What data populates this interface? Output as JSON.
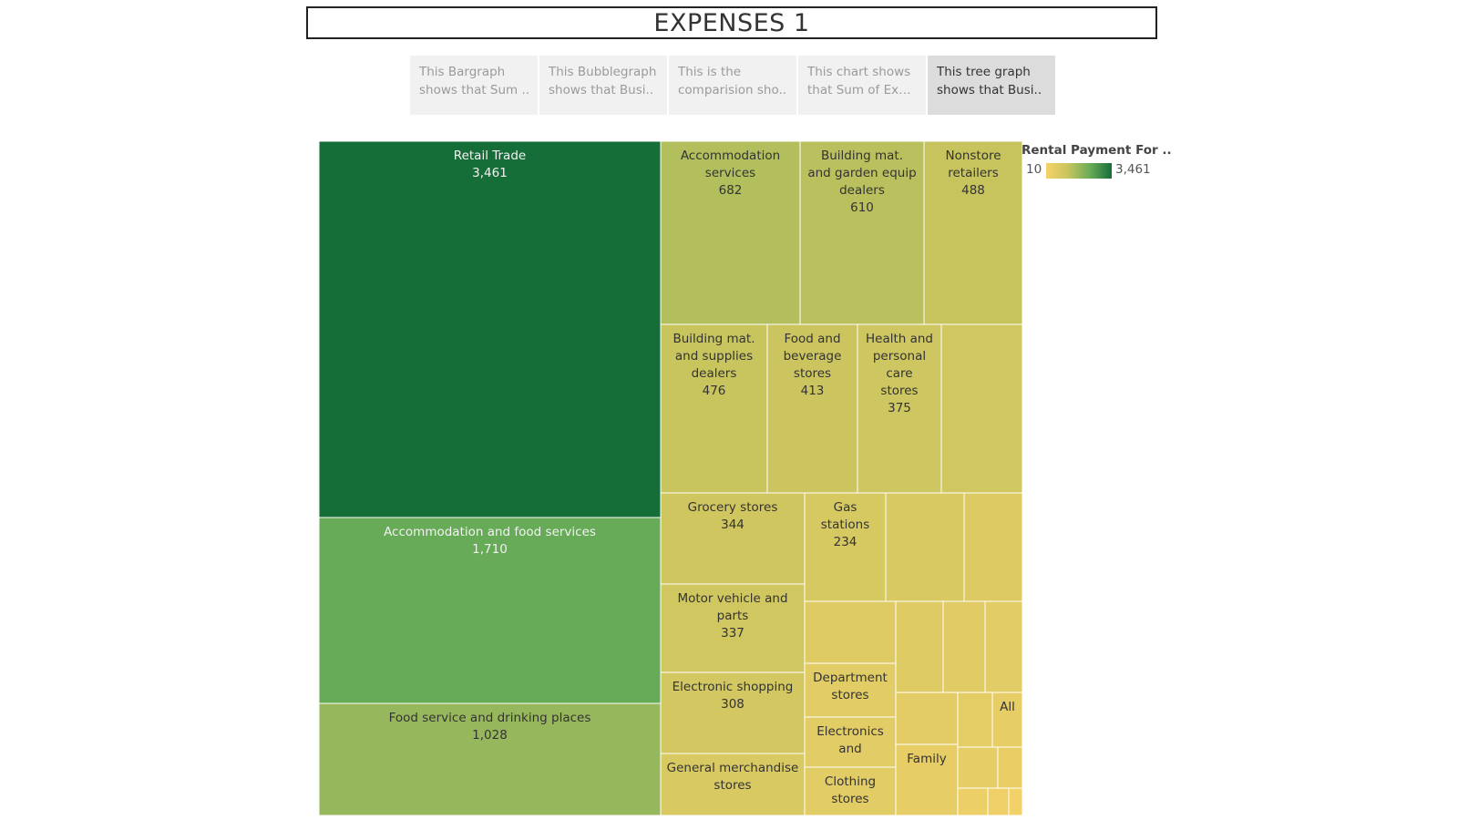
{
  "header": {
    "title": "EXPENSES 1"
  },
  "story_tabs": [
    {
      "label": "This Bargraph shows that Sum ..",
      "line1": "This Bargraph",
      "line2": "shows that Sum .."
    },
    {
      "label": "This Bubblegraph shows that Busi..",
      "line1": "This Bubblegraph",
      "line2": "shows that Busi.."
    },
    {
      "label": "This is the comparision sho..",
      "line1": "This is the",
      "line2": "comparision sho.."
    },
    {
      "label": "This chart shows that Sum of Expe..",
      "line1": "This chart shows",
      "line2": "that Sum of Expe.."
    },
    {
      "label": "This tree graph shows that Busi..",
      "line1": "This tree graph",
      "line2": "shows that Busi..",
      "active": true
    }
  ],
  "legend": {
    "title": "Rental Payment For ..",
    "min_label": "10",
    "max_label": "3,461",
    "colors": [
      "#f6d26a",
      "#c8c45e",
      "#6aac58",
      "#156e38"
    ]
  },
  "chart_data": {
    "type": "treemap",
    "title": "",
    "measure": "Rental Payment For ..",
    "color_range": [
      10,
      3461
    ],
    "nodes": [
      {
        "label": "Retail Trade",
        "value": 3461,
        "value_label": "3,461"
      },
      {
        "label": "Accommodation and food services",
        "value": 1710,
        "value_label": "1,710"
      },
      {
        "label": "Food service and drinking places",
        "value": 1028,
        "value_label": "1,028"
      },
      {
        "label": "Accommodation services",
        "value": 682,
        "value_label": "682"
      },
      {
        "label": "Building mat. and garden equip dealers",
        "value": 610,
        "value_label": "610"
      },
      {
        "label": "Nonstore retailers",
        "value": 488,
        "value_label": "488"
      },
      {
        "label": "Building mat. and supplies dealers",
        "value": 476,
        "value_label": "476"
      },
      {
        "label": "Food and beverage stores",
        "value": 413,
        "value_label": "413"
      },
      {
        "label": "Health and personal care stores",
        "value": 375,
        "value_label": "375"
      },
      {
        "label": "",
        "value": 330
      },
      {
        "label": "Grocery stores",
        "value": 344,
        "value_label": "344"
      },
      {
        "label": "Gas stations",
        "value": 234,
        "value_label": "234"
      },
      {
        "label": "",
        "value": 230
      },
      {
        "label": "",
        "value": 170
      },
      {
        "label": "Motor vehicle and parts",
        "value": 337,
        "value_label": "337"
      },
      {
        "label": "Electronic shopping",
        "value": 308,
        "value_label": "308"
      },
      {
        "label": "General merchandise stores",
        "value": 230
      },
      {
        "label": "",
        "value": 150
      },
      {
        "label": "",
        "value": 150
      },
      {
        "label": "",
        "value": 130
      },
      {
        "label": "",
        "value": 120
      },
      {
        "label": "Department stores",
        "value": 120
      },
      {
        "label": "Electronics and",
        "value": 115
      },
      {
        "label": "Clothing stores",
        "value": 110
      },
      {
        "label": "",
        "value": 100
      },
      {
        "label": "",
        "value": 90
      },
      {
        "label": "All",
        "value": 70
      },
      {
        "label": "",
        "value": 80
      },
      {
        "label": "",
        "value": 60
      },
      {
        "label": "Family",
        "value": 80
      },
      {
        "label": "",
        "value": 35
      },
      {
        "label": "",
        "value": 25
      },
      {
        "label": "",
        "value": 15
      }
    ]
  }
}
